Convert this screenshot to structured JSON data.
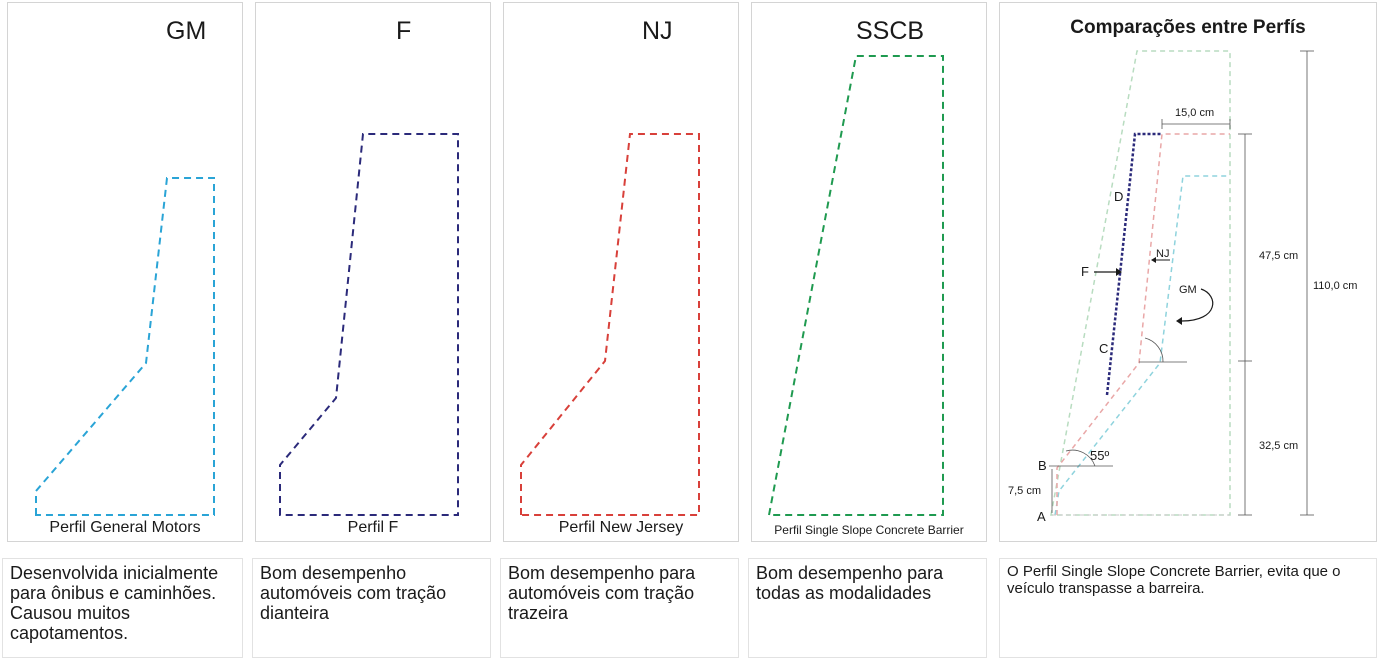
{
  "colors": {
    "gm": "#2aa4d6",
    "f": "#2b2a7a",
    "nj": "#d8403a",
    "sscb": "#1f9a50",
    "cmp_cyan": "#8fd3dd",
    "cmp_pink": "#e9a7a7",
    "cmp_green": "#b8dcc0"
  },
  "profiles": [
    {
      "title": "GM",
      "subtitle": "Perfil General Motors",
      "description": "Desenvolvida inicialmente para ônibus e caminhões. Causou muitos capotamentos."
    },
    {
      "title": "F",
      "subtitle": "Perfil F",
      "description": "Bom desempenho automóveis com tração dianteira"
    },
    {
      "title": "NJ",
      "subtitle": "Perfil New Jersey",
      "description": "Bom desempenho para automóveis com tração trazeira"
    },
    {
      "title": "SSCB",
      "subtitle": "Perfil Single Slope Concrete Barrier",
      "description": "Bom desempenho para todas as modalidades"
    }
  ],
  "comparison": {
    "title": "Comparações entre Perfís",
    "description": "O Perfil Single Slope Concrete Barrier, evita que o veículo transpasse a barreira.",
    "dimensions": {
      "top_width": "15,0 cm",
      "upper_height": "47,5 cm",
      "lower_height": "32,5 cm",
      "total_height": "110,0 cm",
      "base_step": "7,5 cm"
    },
    "angle": "55º",
    "points": [
      "A",
      "B",
      "C",
      "D"
    ],
    "labels": {
      "f": "F",
      "nj": "NJ",
      "gm": "GM"
    }
  }
}
